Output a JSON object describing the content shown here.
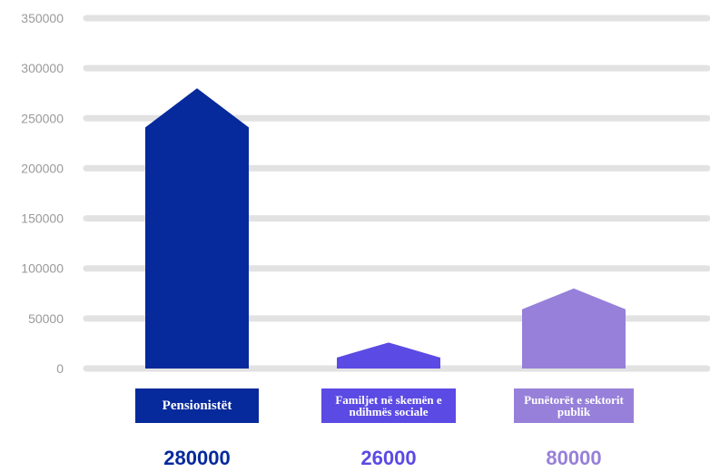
{
  "chart_data": {
    "type": "bar",
    "categories": [
      "Pensionistët",
      "Familjet në skemën e ndihmës sociale",
      "Punëtorët e sektorit publik"
    ],
    "values": [
      280000,
      26000,
      80000
    ],
    "value_labels": [
      "280000",
      "26000",
      "80000"
    ],
    "ylim": [
      0,
      350000
    ],
    "yticks": [
      "0",
      "50000",
      "100000",
      "150000",
      "200000",
      "250000",
      "300000",
      "350000"
    ],
    "grid": true,
    "colors": [
      "#06299b",
      "#5b4ae3",
      "#9780d9"
    ],
    "gridline_color": "#e2e2e2",
    "tick_color": "#9a9a9a"
  }
}
